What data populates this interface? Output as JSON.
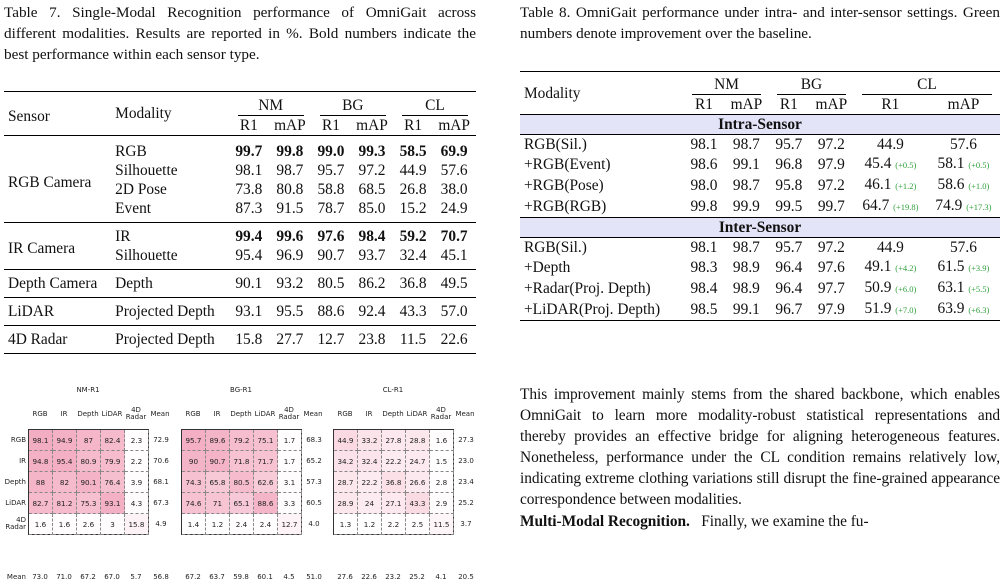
{
  "table7": {
    "caption": "Table 7.  Single-Modal Recognition performance of OmniGait across different modalities. Results are reported in %. Bold numbers indicate the best performance within each sensor type.",
    "headers": {
      "sensor": "Sensor",
      "modality": "Modality",
      "nm": "NM",
      "bg": "BG",
      "cl": "CL",
      "r1": "R1",
      "map": "mAP"
    },
    "groups": [
      {
        "sensor": "RGB Camera",
        "rows": [
          {
            "modality": "RGB",
            "values": [
              "99.7",
              "99.8",
              "99.0",
              "99.3",
              "58.5",
              "69.9"
            ],
            "bold": true
          },
          {
            "modality": "Silhouette",
            "values": [
              "98.1",
              "98.7",
              "95.7",
              "97.2",
              "44.9",
              "57.6"
            ],
            "bold": false
          },
          {
            "modality": "2D Pose",
            "values": [
              "73.8",
              "80.8",
              "58.8",
              "68.5",
              "26.8",
              "38.0"
            ],
            "bold": false
          },
          {
            "modality": "Event",
            "values": [
              "87.3",
              "91.5",
              "78.7",
              "85.0",
              "15.2",
              "24.9"
            ],
            "bold": false
          }
        ]
      },
      {
        "sensor": "IR Camera",
        "rows": [
          {
            "modality": "IR",
            "values": [
              "99.4",
              "99.6",
              "97.6",
              "98.4",
              "59.2",
              "70.7"
            ],
            "bold": true
          },
          {
            "modality": "Silhouette",
            "values": [
              "95.4",
              "96.9",
              "90.7",
              "93.7",
              "32.4",
              "45.1"
            ],
            "bold": false
          }
        ]
      },
      {
        "sensor": "Depth Camera",
        "rows": [
          {
            "modality": "Depth",
            "values": [
              "90.1",
              "93.2",
              "80.5",
              "86.2",
              "36.8",
              "49.5"
            ],
            "bold": false
          }
        ]
      },
      {
        "sensor": "LiDAR",
        "rows": [
          {
            "modality": "Projected Depth",
            "values": [
              "93.1",
              "95.5",
              "88.6",
              "92.4",
              "43.3",
              "57.0"
            ],
            "bold": false
          }
        ]
      },
      {
        "sensor": "4D Radar",
        "rows": [
          {
            "modality": "Projected Depth",
            "values": [
              "15.8",
              "27.7",
              "12.7",
              "23.8",
              "11.5",
              "22.6"
            ],
            "bold": false
          }
        ]
      }
    ]
  },
  "table8": {
    "caption": "Table 8. OmniGait performance under intra- and inter-sensor settings. Green numbers denote improvement over the baseline.",
    "headers": {
      "modality": "Modality",
      "nm": "NM",
      "bg": "BG",
      "cl": "CL",
      "r1": "R1",
      "map": "mAP"
    },
    "sections": [
      {
        "title": "Intra-Sensor",
        "rows": [
          {
            "modality": "RGB(Sil.)",
            "values": [
              "98.1",
              "98.7",
              "95.7",
              "97.2",
              "44.9",
              "57.6"
            ],
            "deltas": [
              "",
              ""
            ]
          },
          {
            "modality": "+RGB(Event)",
            "values": [
              "98.6",
              "99.1",
              "96.8",
              "97.9",
              "45.4",
              "58.1"
            ],
            "deltas": [
              "(+0.5)",
              "(+0.5)"
            ]
          },
          {
            "modality": "+RGB(Pose)",
            "values": [
              "98.0",
              "98.7",
              "95.8",
              "97.2",
              "46.1",
              "58.6"
            ],
            "deltas": [
              "(+1.2)",
              "(+1.0)"
            ]
          },
          {
            "modality": "+RGB(RGB)",
            "values": [
              "99.8",
              "99.9",
              "99.5",
              "99.7",
              "64.7",
              "74.9"
            ],
            "deltas": [
              "(+19.8)",
              "(+17.3)"
            ]
          }
        ]
      },
      {
        "title": "Inter-Sensor",
        "rows": [
          {
            "modality": "RGB(Sil.)",
            "values": [
              "98.1",
              "98.7",
              "95.7",
              "97.2",
              "44.9",
              "57.6"
            ],
            "deltas": [
              "",
              ""
            ]
          },
          {
            "modality": "+Depth",
            "values": [
              "98.3",
              "98.9",
              "96.4",
              "97.6",
              "49.1",
              "61.5"
            ],
            "deltas": [
              "(+4.2)",
              "(+3.9)"
            ]
          },
          {
            "modality": "+Radar(Proj. Depth)",
            "values": [
              "98.4",
              "98.9",
              "96.4",
              "97.7",
              "50.9",
              "63.1"
            ],
            "deltas": [
              "(+6.0)",
              "(+5.5)"
            ]
          },
          {
            "modality": "+LiDAR(Proj. Depth)",
            "values": [
              "98.5",
              "99.1",
              "96.7",
              "97.9",
              "51.9",
              "63.9"
            ],
            "deltas": [
              "(+7.0)",
              "(+6.3)"
            ]
          }
        ]
      }
    ],
    "delta_color": "#2d9f3a",
    "band_color": "#e4e4f8"
  },
  "heatmaps": {
    "labels": [
      "RGB",
      "IR",
      "Depth",
      "LiDAR",
      "4D Radar"
    ],
    "mean_label": "Mean",
    "cell_color": "#f2a7bd",
    "maps": [
      {
        "title": "NM-R1",
        "values": [
          [
            98.1,
            94.9,
            87.0,
            82.4,
            2.3
          ],
          [
            94.8,
            95.4,
            80.9,
            79.9,
            2.2
          ],
          [
            88.0,
            82.0,
            90.1,
            76.4,
            3.9
          ],
          [
            82.7,
            81.2,
            75.3,
            93.1,
            4.3
          ],
          [
            1.6,
            1.6,
            2.6,
            3.0,
            15.8
          ]
        ],
        "row_means": [
          "72.9",
          "70.6",
          "68.1",
          "67.3",
          "4.9"
        ],
        "col_means": [
          "73.0",
          "71.0",
          "67.2",
          "67.0",
          "5.7"
        ],
        "overall": "56.8"
      },
      {
        "title": "BG-R1",
        "values": [
          [
            95.7,
            89.6,
            79.2,
            75.1,
            1.7
          ],
          [
            90.0,
            90.7,
            71.8,
            71.7,
            1.7
          ],
          [
            74.3,
            65.8,
            80.5,
            62.6,
            3.1
          ],
          [
            74.6,
            71.0,
            65.1,
            88.6,
            3.3
          ],
          [
            1.4,
            1.2,
            2.4,
            2.4,
            12.7
          ]
        ],
        "row_means": [
          "68.3",
          "65.2",
          "57.3",
          "60.5",
          "4.0"
        ],
        "col_means": [
          "67.2",
          "63.7",
          "59.8",
          "60.1",
          "4.5"
        ],
        "overall": "51.0"
      },
      {
        "title": "CL-R1",
        "values": [
          [
            44.9,
            33.2,
            27.8,
            28.8,
            1.6
          ],
          [
            34.2,
            32.4,
            22.2,
            24.7,
            1.5
          ],
          [
            28.7,
            22.2,
            36.8,
            26.6,
            2.8
          ],
          [
            28.9,
            24.0,
            27.1,
            43.3,
            2.9
          ],
          [
            1.3,
            1.2,
            2.2,
            2.5,
            11.5
          ]
        ],
        "row_means": [
          "27.3",
          "23.0",
          "23.4",
          "25.2",
          "3.7"
        ],
        "col_means": [
          "27.6",
          "22.6",
          "23.2",
          "25.2",
          "4.1"
        ],
        "overall": "20.5"
      }
    ]
  },
  "paragraph": {
    "text": "This improvement mainly stems from the shared backbone, which enables OmniGait to learn more modality-robust statistical representations and thereby provides an effective bridge for aligning heterogeneous features. Nonetheless, performance under the CL condition remains relatively low, indicating extreme clothing variations still disrupt the fine-grained appearance correspondence between modalities.",
    "heading": "Multi-Modal Recognition.",
    "tail": "Finally, we examine the fu-"
  }
}
